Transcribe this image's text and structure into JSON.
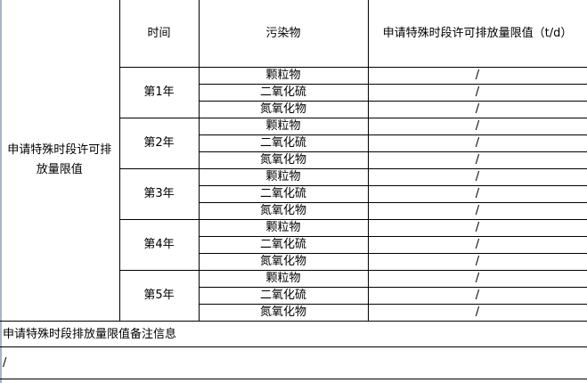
{
  "table": {
    "row_label": "申请特殊时段许可排放量限值",
    "headers": {
      "time": "时间",
      "pollutant": "污染物",
      "limit": "申请特殊时段许可排放量限值（t/d）"
    },
    "years": [
      {
        "label": "第1年",
        "items": [
          {
            "pollutant": "颗粒物",
            "value": "/"
          },
          {
            "pollutant": "二氧化硫",
            "value": "/"
          },
          {
            "pollutant": "氮氧化物",
            "value": "/"
          }
        ]
      },
      {
        "label": "第2年",
        "items": [
          {
            "pollutant": "颗粒物",
            "value": "/"
          },
          {
            "pollutant": "二氧化硫",
            "value": "/"
          },
          {
            "pollutant": "氮氧化物",
            "value": "/"
          }
        ]
      },
      {
        "label": "第3年",
        "items": [
          {
            "pollutant": "颗粒物",
            "value": "/"
          },
          {
            "pollutant": "二氧化硫",
            "value": "/"
          },
          {
            "pollutant": "氮氧化物",
            "value": "/"
          }
        ]
      },
      {
        "label": "第4年",
        "items": [
          {
            "pollutant": "颗粒物",
            "value": "/"
          },
          {
            "pollutant": "二氧化硫",
            "value": "/"
          },
          {
            "pollutant": "氮氧化物",
            "value": "/"
          }
        ]
      },
      {
        "label": "第5年",
        "items": [
          {
            "pollutant": "颗粒物",
            "value": "/"
          },
          {
            "pollutant": "二氧化硫",
            "value": "/"
          },
          {
            "pollutant": "氮氧化物",
            "value": "/"
          }
        ]
      }
    ],
    "remark_label": "申请特殊时段排放量限值备注信息",
    "remark_value": "/"
  }
}
